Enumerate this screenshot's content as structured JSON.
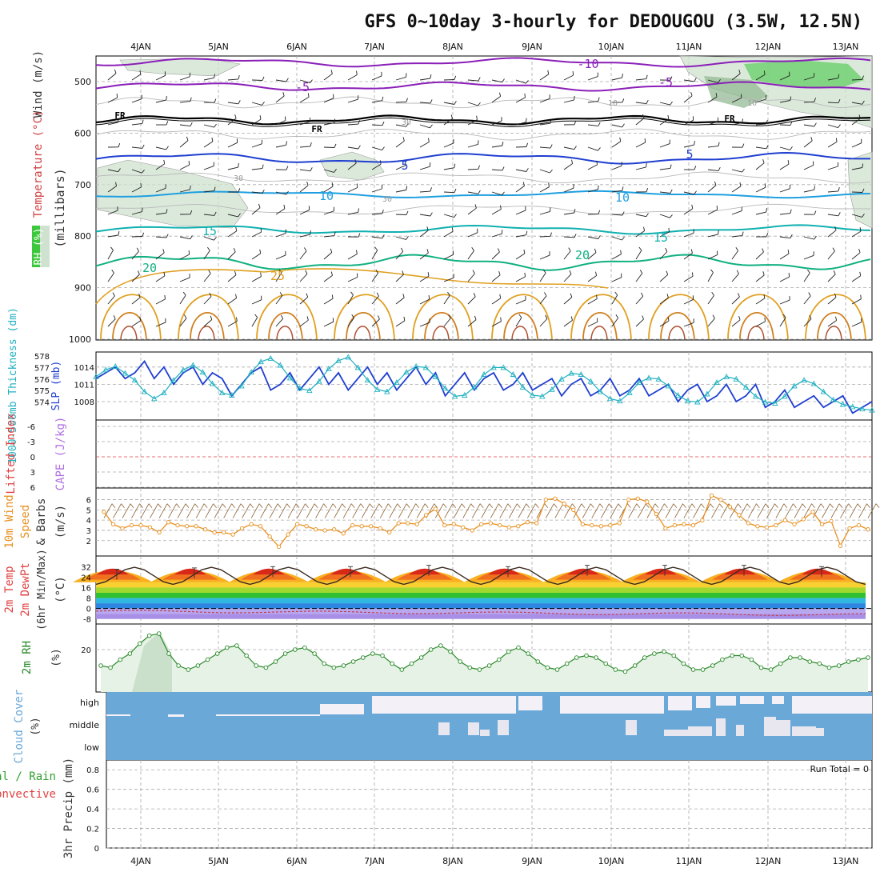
{
  "title": "GFS 0~10day 3-hourly for DEDOUGOU (3.5W, 12.5N)",
  "date_labels": [
    "4JAN",
    "5JAN",
    "6JAN",
    "7JAN",
    "8JAN",
    "9JAN",
    "10JAN",
    "11JAN",
    "12JAN",
    "13JAN"
  ],
  "colors": {
    "rh_fill": "#cfe2cf",
    "rh_dark": "#8fb78f",
    "rh_bright": "#6ccf6c",
    "freeze": "#000000",
    "temp_m10": "#8a1fb8",
    "temp_5": "#1f3fd0",
    "temp_10": "#1f9fe0",
    "temp_15": "#10b0b0",
    "temp_20": "#10b080",
    "temp_25": "#e0a020",
    "slp": "#1f3fd0",
    "thickness": "#20b0c0",
    "wind10": "#e89020",
    "rh2m": "#2a8a2a",
    "cloud": "#6aa8d8",
    "cloud_bg": "#f4f0f8",
    "grid": "#aaaaaa"
  },
  "upper_panel": {
    "ylabel_wind": "Wind (m/s)",
    "ylabel_temp": "Temperature (°C)",
    "ylabel_rh": "RH (%)",
    "ylabel_pressure": "(millibars)",
    "yticks": [
      "500",
      "600",
      "700",
      "800",
      "900",
      "1000"
    ],
    "contour_labels": {
      "temp": [
        "-10",
        "-5",
        "5",
        "10",
        "15",
        "20",
        "25"
      ],
      "freezing": "FR",
      "rh": [
        "10",
        "30"
      ]
    }
  },
  "slp_panel": {
    "ylabel_thickness": "1000-500mb Thickness (dm)",
    "ylabel_slp": "SLP (mb)",
    "thickness_ticks": [
      "578",
      "577",
      "576",
      "575",
      "574"
    ],
    "slp_ticks": [
      "1014",
      "1011",
      "1008"
    ]
  },
  "cape_panel": {
    "ylabel_li": "Lifted Index",
    "ylabel_cape": "CAPE (J/kg)",
    "yticks": [
      "-6",
      "-3",
      "0",
      "3",
      "6"
    ]
  },
  "wind_panel": {
    "ylabel_a": "10m Wind",
    "ylabel_b": "Speed",
    "ylabel_c": "& Barbs",
    "unit": "(m/s)",
    "yticks": [
      "6",
      "5",
      "4",
      "3",
      "2"
    ]
  },
  "temp_panel": {
    "ylabel_a": "2m Temp",
    "ylabel_b": "2m DewPt",
    "ylabel_c": "(6hr Min/Max)",
    "unit": "(°C)",
    "yticks": [
      "32",
      "24",
      "16",
      "8",
      "0",
      "-8"
    ]
  },
  "rh_panel": {
    "ylabel": "2m RH",
    "unit": "(%)",
    "yticks": [
      "20"
    ]
  },
  "cloud_panel": {
    "ylabel": "Cloud Cover",
    "unit": "(%)",
    "levels": [
      "high",
      "middle",
      "low"
    ]
  },
  "precip_panel": {
    "ylabel_a": "Total / Rain",
    "ylabel_b": "Convective",
    "ylabel_c": "3hr Precip (mm)",
    "yticks": [
      "0.8",
      "0.6",
      "0.4",
      "0.2",
      "0"
    ],
    "run_total": "Run Total = 0"
  },
  "chart_data": {
    "type": "line",
    "x_days": [
      "4JAN",
      "5JAN",
      "6JAN",
      "7JAN",
      "8JAN",
      "9JAN",
      "10JAN",
      "11JAN",
      "12JAN",
      "13JAN"
    ],
    "slp_mb": [
      1012,
      1013,
      1014,
      1012,
      1013,
      1015,
      1012,
      1014,
      1011,
      1013,
      1014,
      1011,
      1013,
      1012,
      1009,
      1011,
      1013,
      1014,
      1010,
      1011,
      1013,
      1010,
      1012,
      1014,
      1011,
      1013,
      1010,
      1012,
      1014,
      1011,
      1013,
      1010,
      1012,
      1014,
      1011,
      1013,
      1009,
      1011,
      1013,
      1010,
      1012,
      1013,
      1010,
      1011,
      1013,
      1010,
      1011,
      1012,
      1009,
      1011,
      1012,
      1009,
      1010,
      1012,
      1009,
      1010,
      1012,
      1009,
      1010,
      1011,
      1008,
      1010,
      1011,
      1008,
      1009,
      1011,
      1008,
      1009,
      1011,
      1007,
      1008,
      1010,
      1007,
      1008,
      1009,
      1007,
      1008,
      1009,
      1006,
      1007,
      1008
    ],
    "thickness_dm": [
      576.2,
      576.8,
      577.1,
      576.5,
      575.9,
      574.9,
      574.3,
      574.8,
      575.9,
      576.8,
      577.2,
      576.6,
      575.6,
      574.8,
      574.6,
      575.4,
      576.6,
      577.5,
      577.8,
      577.2,
      576.1,
      575.2,
      575.0,
      575.8,
      576.9,
      577.6,
      577.9,
      577.0,
      575.9,
      575.1,
      574.9,
      575.7,
      576.6,
      577.1,
      577.0,
      576.2,
      575.2,
      574.5,
      574.6,
      575.3,
      576.4,
      577.0,
      577.0,
      576.4,
      575.3,
      574.6,
      574.5,
      575.1,
      576.0,
      576.5,
      576.4,
      575.8,
      574.9,
      574.3,
      574.1,
      574.8,
      575.7,
      576.1,
      576.0,
      575.4,
      574.6,
      574.1,
      574.0,
      574.7,
      575.7,
      576.2,
      576.0,
      575.3,
      574.5,
      574.0,
      573.9,
      574.5,
      575.4,
      575.9,
      575.6,
      574.9,
      574.2,
      573.8,
      573.6,
      573.4,
      573.3
    ],
    "wind10_ms": [
      4.8,
      3.6,
      3.2,
      3.5,
      3.5,
      3.3,
      2.8,
      3.8,
      3.5,
      3.4,
      3.4,
      3.1,
      2.8,
      2.8,
      2.6,
      3.2,
      3.6,
      3.4,
      2.4,
      1.4,
      2.6,
      3.6,
      3.4,
      3.1,
      3.0,
      3.1,
      2.7,
      3.5,
      3.4,
      3.4,
      3.2,
      2.8,
      3.7,
      3.7,
      3.6,
      4.5,
      5.1,
      3.5,
      3.6,
      3.3,
      3.0,
      3.6,
      3.7,
      3.5,
      3.3,
      3.4,
      3.8,
      3.7,
      6.0,
      6.1,
      5.6,
      5.0,
      3.6,
      3.5,
      3.4,
      3.5,
      3.7,
      6.0,
      6.1,
      5.8,
      4.6,
      3.2,
      3.5,
      3.6,
      3.5,
      4.0,
      6.4,
      6.0,
      5.3,
      4.5,
      3.7,
      3.4,
      3.3,
      3.5,
      4.0,
      3.6,
      4.1,
      4.8,
      3.6,
      3.9,
      1.5,
      3.2,
      3.5,
      3.1
    ],
    "temp2m_max": [
      30,
      31,
      32,
      32,
      33,
      32,
      33,
      33,
      33,
      32
    ],
    "temp2m_min": [
      20,
      20,
      21,
      21,
      21,
      21,
      21,
      21,
      20,
      20
    ],
    "rh2m_pct": [
      12,
      11,
      15,
      18,
      23,
      27,
      28,
      18,
      12,
      10,
      12,
      15,
      18,
      21,
      22,
      17,
      12,
      11,
      14,
      18,
      20,
      21,
      18,
      13,
      11,
      12,
      14,
      16,
      18,
      17,
      13,
      10,
      13,
      16,
      20,
      22,
      19,
      14,
      11,
      10,
      12,
      15,
      19,
      21,
      18,
      14,
      11,
      10,
      13,
      16,
      17,
      16,
      13,
      10,
      9,
      12,
      16,
      18,
      19,
      17,
      13,
      10,
      10,
      12,
      15,
      17,
      17,
      15,
      11,
      10,
      13,
      16,
      16,
      14,
      13,
      11,
      12,
      14,
      15,
      16
    ],
    "precip_mm": [
      0,
      0,
      0,
      0,
      0,
      0,
      0,
      0,
      0,
      0
    ],
    "run_total_mm": 0
  }
}
